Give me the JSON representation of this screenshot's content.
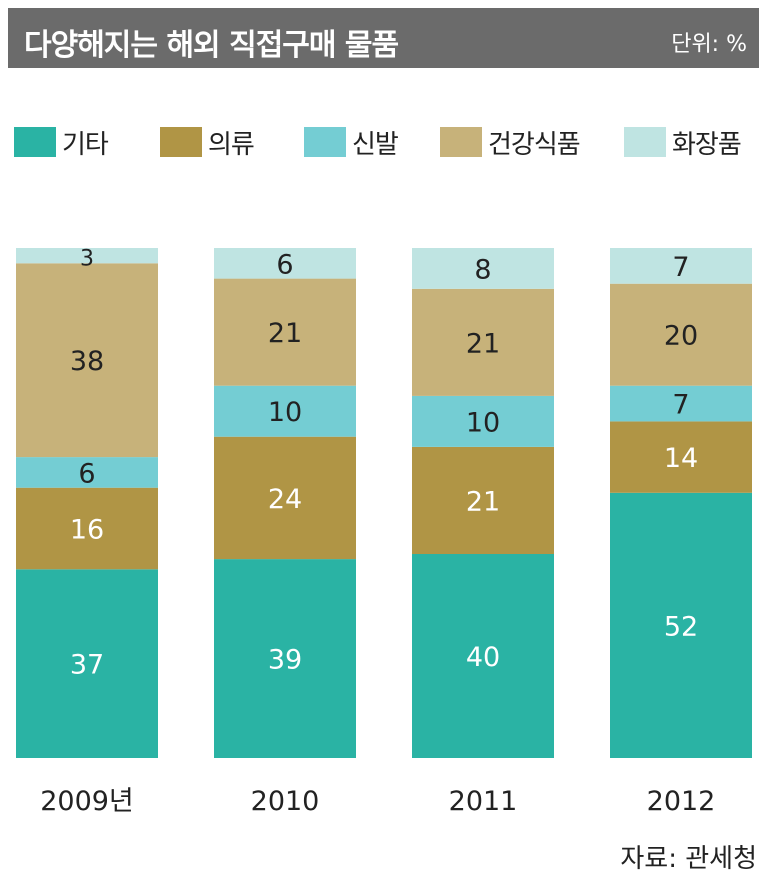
{
  "header": {
    "title": "다양해지는 해외 직접구매 물품",
    "unit": "단위: %"
  },
  "legend": [
    {
      "label": "기타",
      "color": "#2ab3a4"
    },
    {
      "label": "의류",
      "color": "#b09545"
    },
    {
      "label": "신발",
      "color": "#74cdd3"
    },
    {
      "label": "건강식품",
      "color": "#c7b27a"
    },
    {
      "label": "화장품",
      "color": "#bfe4e2"
    }
  ],
  "chart_data": {
    "type": "bar",
    "stacked": true,
    "categories": [
      "2009년",
      "2010",
      "2011",
      "2012"
    ],
    "series": [
      {
        "name": "기타",
        "color": "#2ab3a4",
        "label_color": "#ffffff",
        "values": [
          37,
          39,
          40,
          52
        ]
      },
      {
        "name": "의류",
        "color": "#b09545",
        "label_color": "#ffffff",
        "values": [
          16,
          24,
          21,
          14
        ]
      },
      {
        "name": "신발",
        "color": "#74cdd3",
        "label_color": "#222222",
        "values": [
          6,
          10,
          10,
          7
        ]
      },
      {
        "name": "건강식품",
        "color": "#c7b27a",
        "label_color": "#222222",
        "values": [
          38,
          21,
          21,
          20
        ]
      },
      {
        "name": "화장품",
        "color": "#bfe4e2",
        "label_color": "#222222",
        "values": [
          3,
          6,
          8,
          7
        ]
      }
    ],
    "ylim": [
      0,
      100
    ]
  },
  "footer": {
    "source": "자료: 관세청"
  }
}
